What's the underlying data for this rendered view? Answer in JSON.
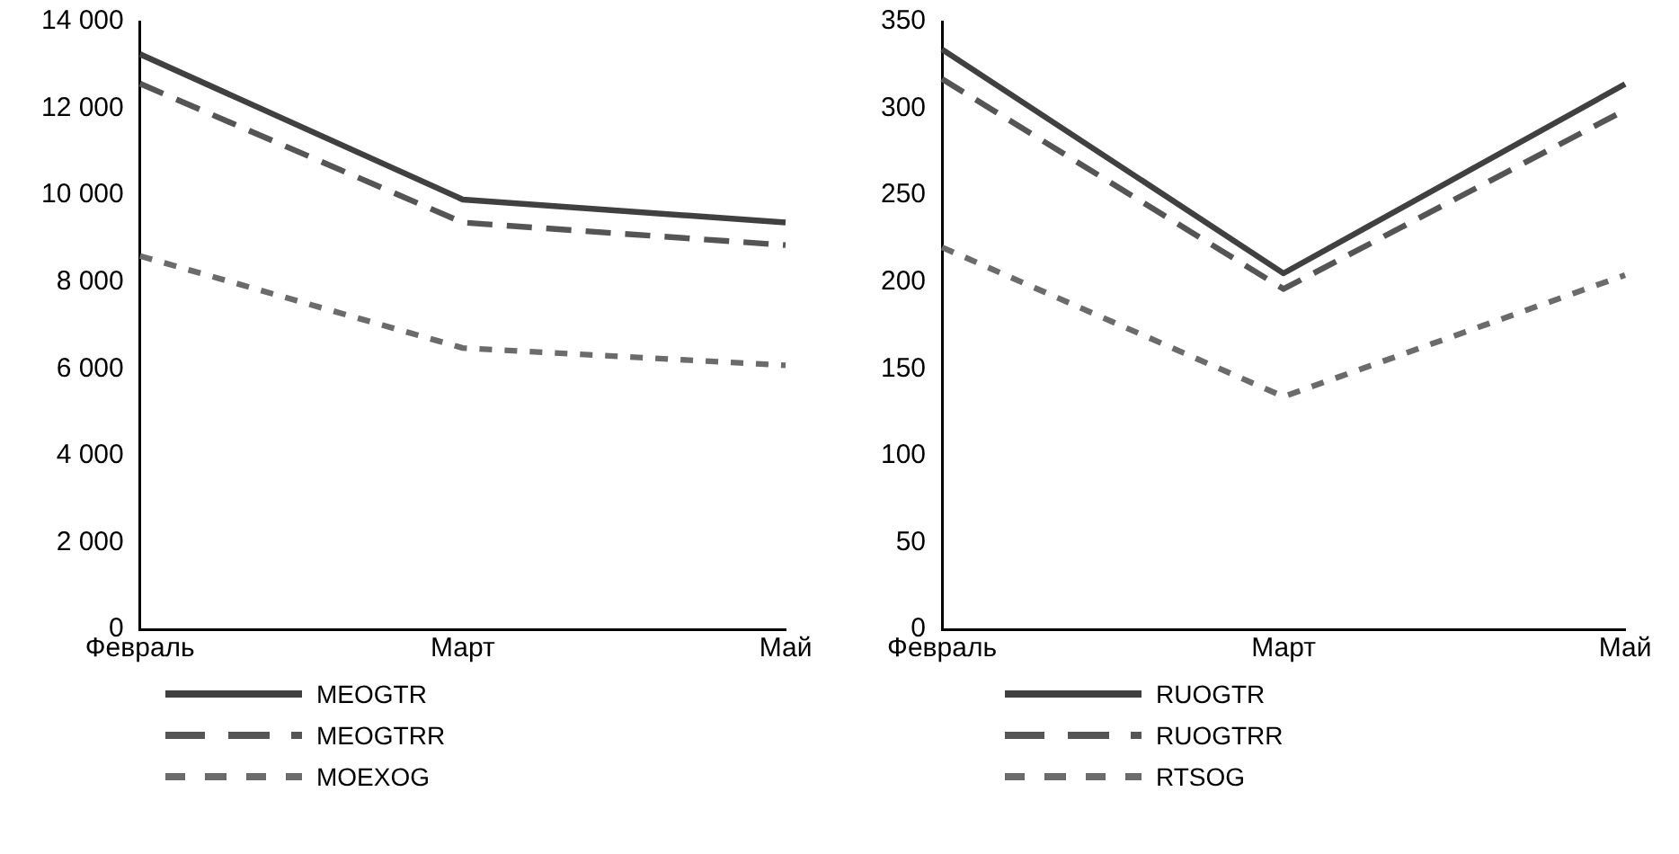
{
  "chart_data": [
    {
      "type": "line",
      "categories": [
        "Февраль",
        "Март",
        "Май"
      ],
      "ylim": [
        0,
        14000
      ],
      "yticks": [
        0,
        {
          "value": 2000,
          "label": "2 000"
        },
        {
          "value": 4000,
          "label": "4 000"
        },
        {
          "value": 6000,
          "label": "6 000"
        },
        {
          "value": 8000,
          "label": "8 000"
        },
        {
          "value": 10000,
          "label": "10 000"
        },
        {
          "value": 12000,
          "label": "12 000"
        },
        {
          "value": 14000,
          "label": "14 000"
        }
      ],
      "grid": false,
      "legend": "bottom",
      "marker": "none",
      "series": [
        {
          "name": "MEOGTR",
          "color": "#404040",
          "line_style": "solid",
          "values": [
            13250,
            9900,
            9370
          ]
        },
        {
          "name": "MEOGTRR",
          "color": "#555555",
          "line_style": "dashed",
          "values": [
            12570,
            9370,
            8850
          ]
        },
        {
          "name": "MOEXOG",
          "color": "#6b6b6b",
          "line_style": "dotted",
          "values": [
            8600,
            6480,
            6080
          ]
        }
      ]
    },
    {
      "type": "line",
      "categories": [
        "Февраль",
        "Март",
        "Май"
      ],
      "ylim": [
        0,
        350
      ],
      "yticks": [
        0,
        50,
        100,
        150,
        200,
        250,
        300,
        350
      ],
      "grid": false,
      "legend": "bottom",
      "marker": "none",
      "series": [
        {
          "name": "RUOGTR",
          "color": "#404040",
          "line_style": "solid",
          "values": [
            334,
            205,
            314
          ]
        },
        {
          "name": "RUOGTRR",
          "color": "#555555",
          "line_style": "dashed",
          "values": [
            317,
            196,
            299
          ]
        },
        {
          "name": "RTSOG",
          "color": "#6b6b6b",
          "line_style": "dotted",
          "values": [
            220,
            134,
            204
          ]
        }
      ]
    }
  ]
}
